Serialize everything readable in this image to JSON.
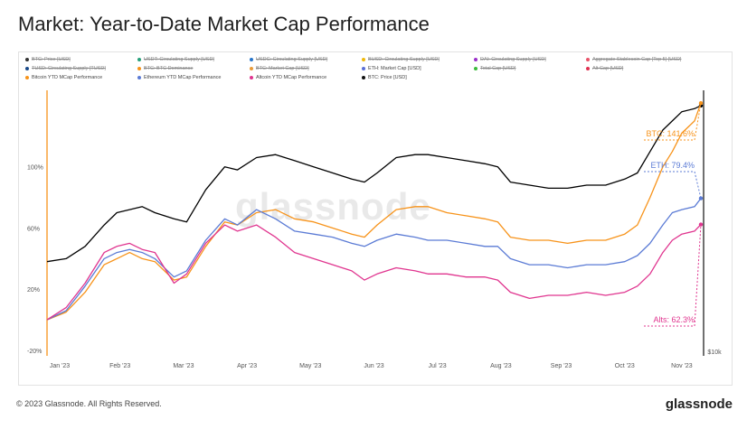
{
  "title": "Market: Year-to-Date Market Cap Performance",
  "footer": "© 2023 Glassnode. All Rights Reserved.",
  "brand": "glassnode",
  "watermark": "glassnode",
  "legend": [
    {
      "label": "BTC: Price [USD]",
      "color": "#333333",
      "struck": true
    },
    {
      "label": "USDT: Circulating Supply [USD]",
      "color": "#26a17b",
      "struck": true
    },
    {
      "label": "USDC: Circulating Supply [USD]",
      "color": "#2775ca",
      "struck": true
    },
    {
      "label": "BUSD: Circulating Supply [USD]",
      "color": "#f0b90b",
      "struck": true
    },
    {
      "label": "DAI: Circulating Supply [USD]",
      "color": "#9b30c9",
      "struck": true
    },
    {
      "label": "Aggregate Stablecoin Cap [Top 5] [USD]",
      "color": "#e8546a",
      "struck": true
    },
    {
      "label": "TUSD: Circulating Supply [TUSD]",
      "color": "#1a4a8a",
      "struck": true
    },
    {
      "label": "BTC: BTC Dominance",
      "color": "#f7931a",
      "struck": true
    },
    {
      "label": "BTC: Market Cap [USD]",
      "color": "#e89b3a",
      "struck": true
    },
    {
      "label": "ETH: Market Cap [USD]",
      "color": "#5a6fd6",
      "struck": false
    },
    {
      "label": "Total Cap [USD]",
      "color": "#3dbb3d",
      "struck": true
    },
    {
      "label": "Alt Cap [USD]",
      "color": "#e03050",
      "struck": true
    },
    {
      "label": "Bitcoin YTD MCap Performance",
      "color": "#f7931a",
      "struck": false
    },
    {
      "label": "Ethereum YTD MCap Performance",
      "color": "#5b7bd5",
      "struck": false
    },
    {
      "label": "Altcoin YTD MCap Performance",
      "color": "#e0358f",
      "struck": false
    },
    {
      "label": "BTC: Price [USD]",
      "color": "#111111",
      "struck": false
    }
  ],
  "chart_data": {
    "type": "line",
    "x_labels": [
      "Jan '23",
      "Feb '23",
      "Mar '23",
      "Apr '23",
      "May '23",
      "Jun '23",
      "Jul '23",
      "Aug '23",
      "Sep '23",
      "Oct '23",
      "Nov '23"
    ],
    "y_ticks": [
      "100%",
      "60%",
      "20%",
      "-20%"
    ],
    "ylim": [
      -20,
      150
    ],
    "right_axis_label": "$10k",
    "annotations": [
      {
        "text": "BTC: 141.6%",
        "series": "Bitcoin YTD MCap Performance"
      },
      {
        "text": "ETH: 79.4%",
        "series": "Ethereum YTD MCap Performance"
      },
      {
        "text": "Alts: 62.3%",
        "series": "Altcoin YTD MCap Performance"
      }
    ],
    "series": [
      {
        "name": "BTC: Price [USD]",
        "color": "#000000",
        "values": [
          [
            0,
            38
          ],
          [
            0.3,
            40
          ],
          [
            0.6,
            48
          ],
          [
            0.9,
            62
          ],
          [
            1.1,
            70
          ],
          [
            1.3,
            72
          ],
          [
            1.5,
            74
          ],
          [
            1.7,
            70
          ],
          [
            2.0,
            66
          ],
          [
            2.2,
            64
          ],
          [
            2.5,
            85
          ],
          [
            2.8,
            100
          ],
          [
            3.0,
            98
          ],
          [
            3.3,
            106
          ],
          [
            3.6,
            108
          ],
          [
            3.9,
            104
          ],
          [
            4.2,
            100
          ],
          [
            4.5,
            96
          ],
          [
            4.8,
            92
          ],
          [
            5.0,
            90
          ],
          [
            5.2,
            96
          ],
          [
            5.5,
            106
          ],
          [
            5.8,
            108
          ],
          [
            6.0,
            108
          ],
          [
            6.3,
            106
          ],
          [
            6.6,
            104
          ],
          [
            6.9,
            102
          ],
          [
            7.1,
            100
          ],
          [
            7.3,
            90
          ],
          [
            7.6,
            88
          ],
          [
            7.9,
            86
          ],
          [
            8.2,
            86
          ],
          [
            8.5,
            88
          ],
          [
            8.8,
            88
          ],
          [
            9.1,
            92
          ],
          [
            9.3,
            96
          ],
          [
            9.5,
            110
          ],
          [
            9.7,
            124
          ],
          [
            9.85,
            130
          ],
          [
            10.0,
            136
          ],
          [
            10.2,
            138
          ],
          [
            10.3,
            140
          ]
        ]
      },
      {
        "name": "Bitcoin YTD MCap Performance",
        "color": "#f7931a",
        "values": [
          [
            0,
            0
          ],
          [
            0.3,
            5
          ],
          [
            0.6,
            18
          ],
          [
            0.9,
            36
          ],
          [
            1.1,
            40
          ],
          [
            1.3,
            44
          ],
          [
            1.5,
            40
          ],
          [
            1.7,
            38
          ],
          [
            2.0,
            26
          ],
          [
            2.2,
            28
          ],
          [
            2.5,
            48
          ],
          [
            2.8,
            64
          ],
          [
            3.0,
            62
          ],
          [
            3.3,
            70
          ],
          [
            3.6,
            72
          ],
          [
            3.9,
            66
          ],
          [
            4.2,
            64
          ],
          [
            4.5,
            60
          ],
          [
            4.8,
            56
          ],
          [
            5.0,
            54
          ],
          [
            5.2,
            62
          ],
          [
            5.5,
            72
          ],
          [
            5.8,
            74
          ],
          [
            6.0,
            74
          ],
          [
            6.3,
            70
          ],
          [
            6.6,
            68
          ],
          [
            6.9,
            66
          ],
          [
            7.1,
            64
          ],
          [
            7.3,
            54
          ],
          [
            7.6,
            52
          ],
          [
            7.9,
            52
          ],
          [
            8.2,
            50
          ],
          [
            8.5,
            52
          ],
          [
            8.8,
            52
          ],
          [
            9.1,
            56
          ],
          [
            9.3,
            62
          ],
          [
            9.5,
            80
          ],
          [
            9.7,
            100
          ],
          [
            9.85,
            110
          ],
          [
            10.0,
            122
          ],
          [
            10.2,
            130
          ],
          [
            10.3,
            141.6
          ]
        ]
      },
      {
        "name": "Ethereum YTD MCap Performance",
        "color": "#5b7bd5",
        "values": [
          [
            0,
            0
          ],
          [
            0.3,
            6
          ],
          [
            0.6,
            22
          ],
          [
            0.9,
            40
          ],
          [
            1.1,
            44
          ],
          [
            1.3,
            46
          ],
          [
            1.5,
            44
          ],
          [
            1.7,
            40
          ],
          [
            2.0,
            28
          ],
          [
            2.2,
            32
          ],
          [
            2.5,
            52
          ],
          [
            2.8,
            66
          ],
          [
            3.0,
            62
          ],
          [
            3.3,
            72
          ],
          [
            3.6,
            66
          ],
          [
            3.9,
            58
          ],
          [
            4.2,
            56
          ],
          [
            4.5,
            54
          ],
          [
            4.8,
            50
          ],
          [
            5.0,
            48
          ],
          [
            5.2,
            52
          ],
          [
            5.5,
            56
          ],
          [
            5.8,
            54
          ],
          [
            6.0,
            52
          ],
          [
            6.3,
            52
          ],
          [
            6.6,
            50
          ],
          [
            6.9,
            48
          ],
          [
            7.1,
            48
          ],
          [
            7.3,
            40
          ],
          [
            7.6,
            36
          ],
          [
            7.9,
            36
          ],
          [
            8.2,
            34
          ],
          [
            8.5,
            36
          ],
          [
            8.8,
            36
          ],
          [
            9.1,
            38
          ],
          [
            9.3,
            42
          ],
          [
            9.5,
            50
          ],
          [
            9.7,
            62
          ],
          [
            9.85,
            70
          ],
          [
            10.0,
            72
          ],
          [
            10.2,
            74
          ],
          [
            10.3,
            79.4
          ]
        ]
      },
      {
        "name": "Altcoin YTD MCap Performance",
        "color": "#e0358f",
        "values": [
          [
            0,
            0
          ],
          [
            0.3,
            8
          ],
          [
            0.6,
            24
          ],
          [
            0.9,
            44
          ],
          [
            1.1,
            48
          ],
          [
            1.3,
            50
          ],
          [
            1.5,
            46
          ],
          [
            1.7,
            44
          ],
          [
            2.0,
            24
          ],
          [
            2.2,
            30
          ],
          [
            2.5,
            50
          ],
          [
            2.8,
            62
          ],
          [
            3.0,
            58
          ],
          [
            3.3,
            62
          ],
          [
            3.6,
            54
          ],
          [
            3.9,
            44
          ],
          [
            4.2,
            40
          ],
          [
            4.5,
            36
          ],
          [
            4.8,
            32
          ],
          [
            5.0,
            26
          ],
          [
            5.2,
            30
          ],
          [
            5.5,
            34
          ],
          [
            5.8,
            32
          ],
          [
            6.0,
            30
          ],
          [
            6.3,
            30
          ],
          [
            6.6,
            28
          ],
          [
            6.9,
            28
          ],
          [
            7.1,
            26
          ],
          [
            7.3,
            18
          ],
          [
            7.6,
            14
          ],
          [
            7.9,
            16
          ],
          [
            8.2,
            16
          ],
          [
            8.5,
            18
          ],
          [
            8.8,
            16
          ],
          [
            9.1,
            18
          ],
          [
            9.3,
            22
          ],
          [
            9.5,
            30
          ],
          [
            9.7,
            44
          ],
          [
            9.85,
            52
          ],
          [
            10.0,
            56
          ],
          [
            10.2,
            58
          ],
          [
            10.3,
            62.3
          ]
        ]
      }
    ]
  }
}
